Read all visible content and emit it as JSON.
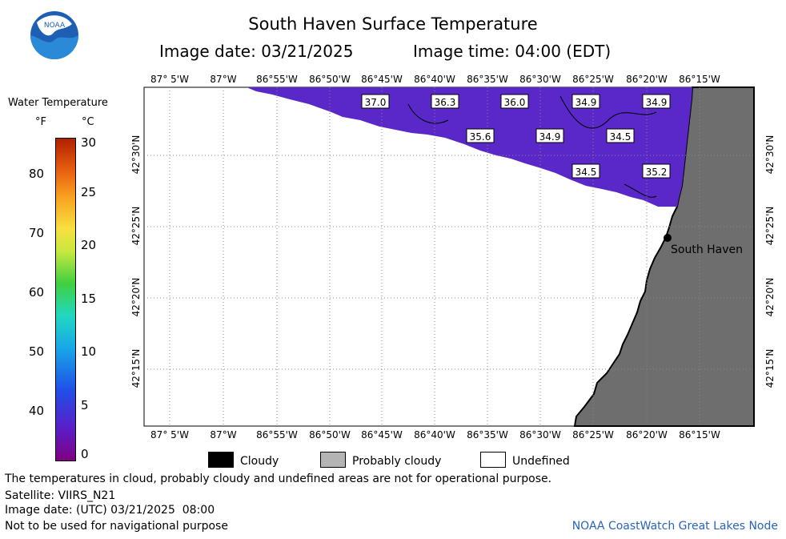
{
  "header": {
    "title": "South Haven Surface Temperature",
    "image_date": "Image date: 03/21/2025",
    "image_time": "Image time: 04:00 (EDT)"
  },
  "colorbar": {
    "title": "Water Temperature",
    "unit_f": "°F",
    "unit_c": "°C",
    "f_ticks": [
      "80",
      "70",
      "60",
      "50",
      "40"
    ],
    "c_ticks": [
      "30",
      "25",
      "20",
      "15",
      "10",
      "5",
      "0"
    ]
  },
  "map": {
    "top_lon_labels": [
      "87° 5'W",
      "87°W",
      "86°55'W",
      "86°50'W",
      "86°45'W",
      "86°40'W",
      "86°35'W",
      "86°30'W",
      "86°25'W",
      "86°20'W",
      "86°15'W"
    ],
    "bottom_lon_labels": [
      "87° 5'W",
      "87°W",
      "86°55'W",
      "86°50'W",
      "86°45'W",
      "86°40'W",
      "86°35'W",
      "86°30'W",
      "86°25'W",
      "86°20'W",
      "86°15'W"
    ],
    "lat_labels": [
      "42°30'N",
      "42°25'N",
      "42°20'N",
      "42°15'N"
    ],
    "temperature_labels": [
      "37.0",
      "36.3",
      "36.0",
      "34.9",
      "34.9",
      "35.6",
      "34.9",
      "34.5",
      "34.5",
      "35.2"
    ],
    "city": "South Haven",
    "colors": {
      "water": "#5a28c8",
      "land": "#6e6e6e",
      "undefined": "#ffffff"
    }
  },
  "legend": {
    "cloudy": "Cloudy",
    "probably_cloudy": "Probably cloudy",
    "undefined": "Undefined"
  },
  "footer": {
    "note": "The temperatures in cloud, probably cloudy and undefined areas are not for operational purpose.",
    "satellite": "Satellite: VIIRS_N21",
    "utc_date": "Image date: (UTC) 03/21/2025  08:00",
    "nav": "Not to be used for navigational purpose",
    "credit": "NOAA CoastWatch Great Lakes Node"
  }
}
